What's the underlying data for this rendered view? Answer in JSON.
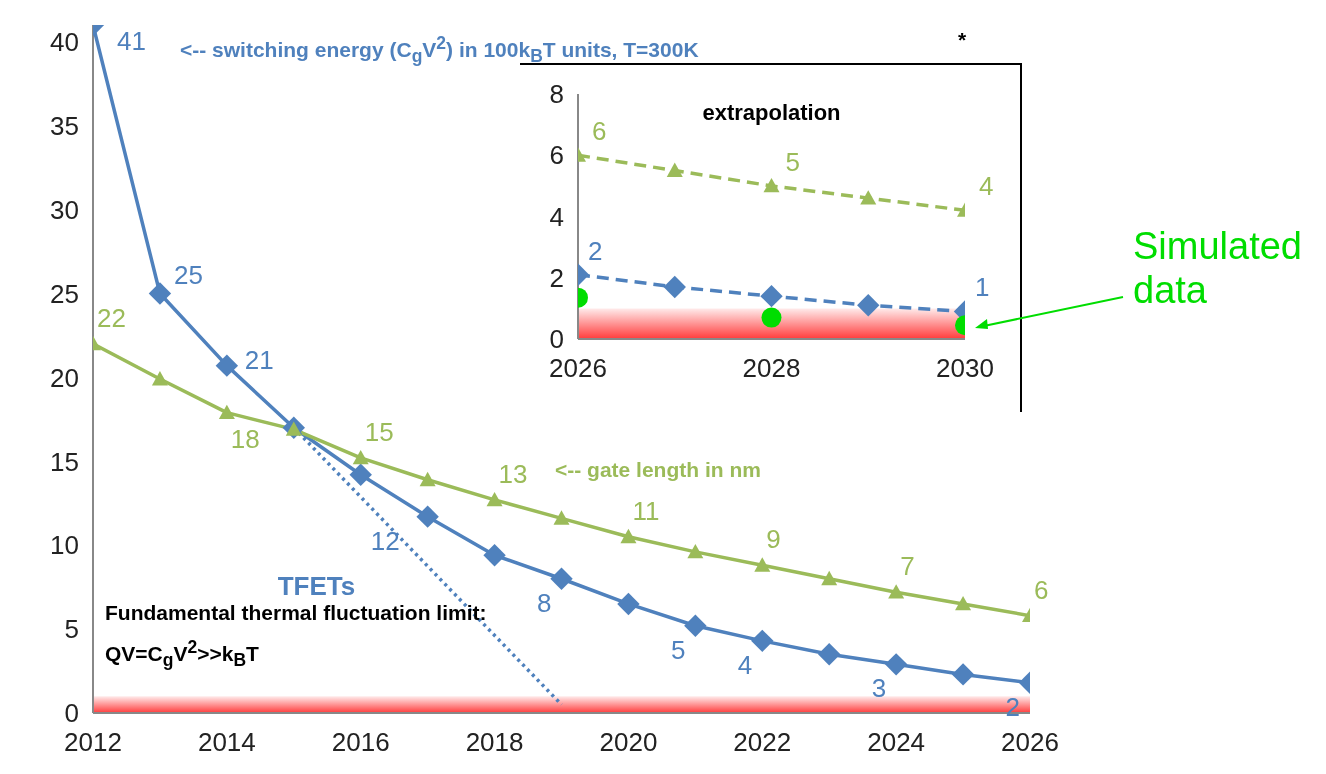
{
  "chart_data": [
    {
      "type": "line",
      "xlim": [
        2012,
        2026
      ],
      "xticks": [
        2012,
        2014,
        2016,
        2018,
        2020,
        2022,
        2024,
        2026
      ],
      "ylim": [
        0,
        41
      ],
      "yticks": [
        0,
        5,
        10,
        15,
        20,
        25,
        30,
        35,
        40
      ],
      "x": [
        2012,
        2013,
        2014,
        2015,
        2016,
        2017,
        2018,
        2019,
        2020,
        2021,
        2022,
        2023,
        2024,
        2025,
        2026
      ],
      "series": [
        {
          "color": "#4f81bd",
          "marker": "diamond",
          "values": [
            41,
            25,
            20.7,
            17,
            14.2,
            11.7,
            9.4,
            8,
            6.5,
            5.2,
            4.3,
            3.5,
            2.9,
            2.3,
            1.8
          ],
          "value_labels": [
            "41",
            "25",
            "21",
            null,
            null,
            "12",
            null,
            "8",
            null,
            "5",
            "4",
            null,
            "3",
            null,
            "2"
          ]
        },
        {
          "color": "#9bbb59",
          "marker": "triangle",
          "values": [
            22,
            19.9,
            17.9,
            16.9,
            15.2,
            13.9,
            12.7,
            11.6,
            10.5,
            9.6,
            8.8,
            8,
            7.2,
            6.5,
            5.8
          ],
          "value_labels": [
            "22",
            null,
            "18",
            null,
            "15",
            null,
            "13",
            null,
            "11",
            null,
            "9",
            null,
            "7",
            null,
            "6"
          ]
        },
        {
          "type": "line",
          "name": "TFETs",
          "color": "#4f81bd",
          "marker": "none",
          "line_style": "dotted",
          "x": [
            2015,
            2019
          ],
          "values": [
            17,
            0.5
          ]
        }
      ],
      "bands": [
        {
          "axis": "y",
          "from": 0,
          "to": 1,
          "color": "#ff3b3b"
        }
      ],
      "annotations": [
        "<-- switching energy (C$_{g}$V$^{2}$) in 100k$_{B}$T units, T=300K",
        "<-- gate length in nm",
        "Fundamental thermal fluctuation limit: QV=C$_{g}$V$^{2}$>>k$_{B}$T",
        "*"
      ]
    },
    {
      "type": "line",
      "title": "extrapolation",
      "xlim": [
        2026,
        2030
      ],
      "xticks": [
        2026,
        2028,
        2030
      ],
      "ylim": [
        0,
        8
      ],
      "yticks": [
        0,
        2,
        4,
        6,
        8
      ],
      "line_style": "dashed",
      "x": [
        2026,
        2027,
        2028,
        2029,
        2030
      ],
      "series": [
        {
          "color": "#9bbb59",
          "marker": "triangle",
          "values": [
            6,
            5.5,
            5,
            4.6,
            4.2
          ],
          "value_labels": [
            "6",
            null,
            "5",
            null,
            "4"
          ]
        },
        {
          "color": "#4f81bd",
          "marker": "diamond",
          "values": [
            2.1,
            1.7,
            1.4,
            1.1,
            0.9
          ],
          "value_labels": [
            "2",
            null,
            null,
            null,
            "1"
          ]
        },
        {
          "type": "scatter",
          "name": "Simulated data",
          "color": "#00dd00",
          "marker": "circle",
          "x": [
            2026,
            2028,
            2030
          ],
          "values": [
            1.35,
            0.7,
            0.45
          ]
        }
      ],
      "bands": [
        {
          "axis": "y",
          "from": 0,
          "to": 1,
          "color": "#ff3b3b"
        }
      ]
    }
  ]
}
